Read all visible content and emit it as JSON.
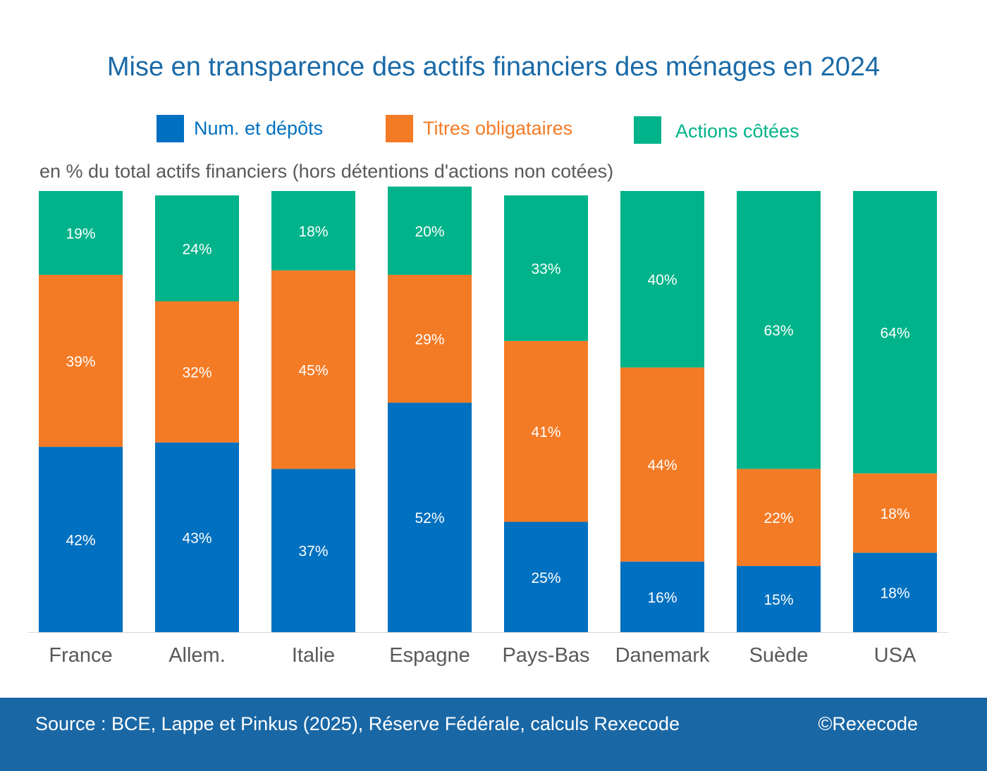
{
  "colors": {
    "deposits": "#0070c0",
    "bonds": "#f47b25",
    "equities": "#00b38a",
    "title": "#1a6aa8",
    "footer_bg": "#1a67a5"
  },
  "footer": {
    "source": "Source : BCE, Lappe et Pinkus (2025), Réserve Fédérale, calculs Rexecode",
    "copyright": "©Rexecode"
  },
  "chart_data": {
    "type": "bar",
    "stacked": true,
    "title": "Mise en transparence des actifs financiers des ménages en 2024",
    "ylabel": "en % du total actifs financiers (hors détentions d'actions non cotées)",
    "xlabel": "",
    "ylim": [
      0,
      100
    ],
    "legend_position": "top",
    "grid": false,
    "categories": [
      "France",
      "Allem.",
      "Italie",
      "Espagne",
      "Pays-Bas",
      "Danemark",
      "Suède",
      "USA"
    ],
    "series": [
      {
        "name": "Num. et dépôts",
        "color_key": "deposits",
        "values": [
          42,
          43,
          37,
          52,
          25,
          16,
          15,
          18
        ],
        "labels": [
          "42%",
          "43%",
          "37%",
          "52%",
          "25%",
          "16%",
          "15%",
          "18%"
        ]
      },
      {
        "name": "Titres obligataires",
        "color_key": "bonds",
        "values": [
          39,
          32,
          45,
          29,
          41,
          44,
          22,
          18
        ],
        "labels": [
          "39%",
          "32%",
          "45%",
          "29%",
          "41%",
          "44%",
          "22%",
          "18%"
        ]
      },
      {
        "name": "Actions côtées",
        "color_key": "equities",
        "values": [
          19,
          24,
          18,
          20,
          33,
          40,
          63,
          64
        ],
        "labels": [
          "19%",
          "24%",
          "18%",
          "20%",
          "33%",
          "40%",
          "63%",
          "64%"
        ]
      }
    ]
  }
}
